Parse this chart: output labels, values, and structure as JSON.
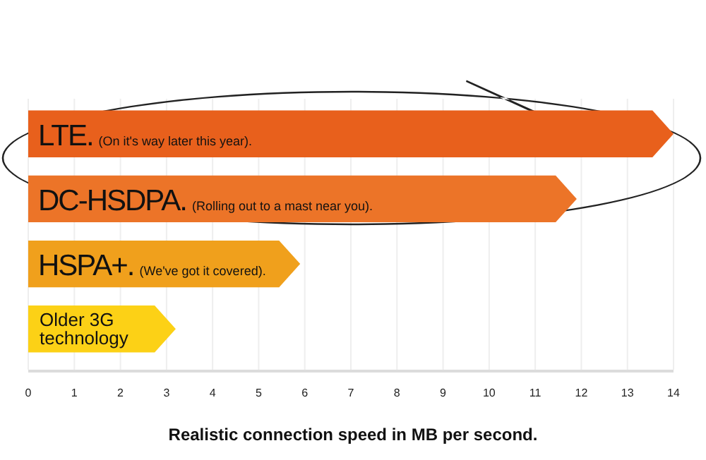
{
  "chart_data": {
    "type": "bar",
    "orientation": "horizontal",
    "xlabel": "Realistic connection speed in MB per second.",
    "categories": [
      "LTE.",
      "DC-HSDPA.",
      "HSPA+.",
      "Older 3G technology"
    ],
    "values": [
      14,
      11.9,
      5.9,
      3.2
    ],
    "colors": [
      "#e8601c",
      "#ec7428",
      "#f0a01c",
      "#fcd116"
    ],
    "xlim": [
      0,
      14
    ],
    "xticks": [
      0,
      1,
      2,
      3,
      4,
      5,
      6,
      7,
      8,
      9,
      10,
      11,
      12,
      13,
      14
    ],
    "grid": "x",
    "annotations": [
      {
        "text": "(On it's way later this year).",
        "y": "LTE."
      },
      {
        "text": "(Rolling out to a mast near you).",
        "y": "DC-HSDPA."
      },
      {
        "text": "(We've got it covered).",
        "y": "HSPA+."
      }
    ]
  }
}
